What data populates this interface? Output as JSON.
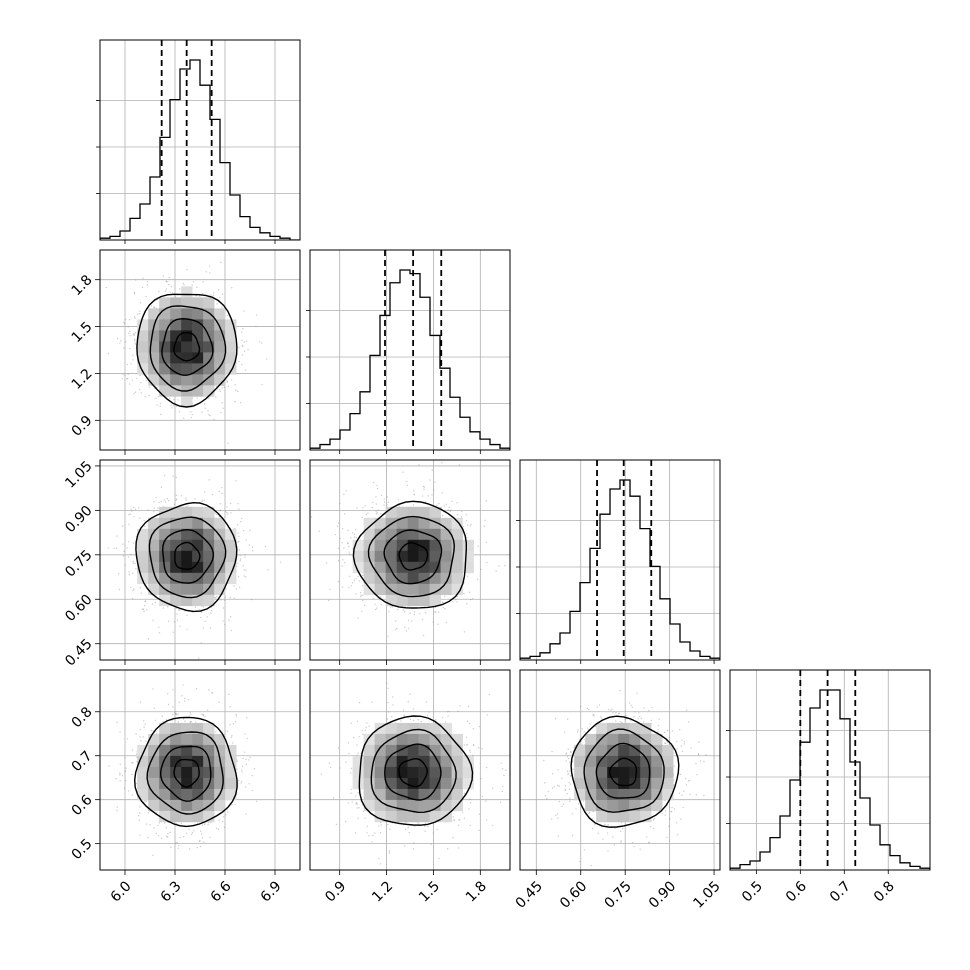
{
  "chart_data": {
    "type": "corner",
    "title": "",
    "parameters": 4,
    "grid": true,
    "quantile_lines": "dashed",
    "colors": {
      "hist": "#000000",
      "grid": "#b0b0b0",
      "samples": "#8c8c8c",
      "contour": "#000000"
    },
    "axes": [
      {
        "range": [
          5.85,
          7.05
        ],
        "ticks": [
          6.0,
          6.3,
          6.6,
          6.9
        ],
        "tick_labels": [
          "6.0",
          "6.3",
          "6.6",
          "6.9"
        ]
      },
      {
        "range": [
          0.71,
          1.99
        ],
        "ticks": [
          0.9,
          1.2,
          1.5,
          1.8
        ],
        "tick_labels": [
          "0.9",
          "1.2",
          "1.5",
          "1.8"
        ]
      },
      {
        "range": [
          0.395,
          1.07
        ],
        "ticks": [
          0.45,
          0.6,
          0.75,
          0.9,
          1.05
        ],
        "tick_labels": [
          "0.45",
          "0.60",
          "0.75",
          "0.90",
          "1.05"
        ]
      },
      {
        "range": [
          0.44,
          0.895
        ],
        "ticks": [
          0.5,
          0.6,
          0.7,
          0.8
        ],
        "tick_labels": [
          "0.5",
          "0.6",
          "0.7",
          "0.8"
        ]
      }
    ],
    "marginals": [
      {
        "param": 0,
        "median": 6.37,
        "quantiles": [
          6.22,
          6.37,
          6.52
        ],
        "bin_edges": [
          5.85,
          5.91,
          5.97,
          6.03,
          6.09,
          6.15,
          6.21,
          6.27,
          6.33,
          6.39,
          6.45,
          6.51,
          6.57,
          6.63,
          6.69,
          6.75,
          6.81,
          6.87,
          6.93,
          6.99,
          7.05
        ],
        "counts": [
          0.01,
          0.02,
          0.05,
          0.12,
          0.2,
          0.35,
          0.57,
          0.78,
          0.95,
          1.0,
          0.86,
          0.67,
          0.43,
          0.25,
          0.13,
          0.07,
          0.04,
          0.02,
          0.01,
          0.0
        ]
      },
      {
        "param": 1,
        "median": 1.37,
        "quantiles": [
          1.19,
          1.37,
          1.55
        ],
        "bin_edges": [
          0.71,
          0.774,
          0.838,
          0.902,
          0.966,
          1.03,
          1.094,
          1.158,
          1.222,
          1.286,
          1.35,
          1.414,
          1.478,
          1.542,
          1.606,
          1.67,
          1.734,
          1.798,
          1.862,
          1.926,
          1.99
        ],
        "counts": [
          0.01,
          0.03,
          0.06,
          0.11,
          0.2,
          0.32,
          0.52,
          0.74,
          0.92,
          0.99,
          0.97,
          0.84,
          0.63,
          0.45,
          0.29,
          0.18,
          0.1,
          0.06,
          0.03,
          0.01
        ]
      },
      {
        "param": 2,
        "median": 0.745,
        "quantiles": [
          0.655,
          0.745,
          0.838
        ],
        "bin_edges": [
          0.395,
          0.4288,
          0.4625,
          0.4963,
          0.53,
          0.5638,
          0.5975,
          0.6313,
          0.665,
          0.6988,
          0.7325,
          0.7663,
          0.8,
          0.8338,
          0.8675,
          0.9013,
          0.935,
          0.9688,
          1.0025,
          1.0363,
          1.07
        ],
        "counts": [
          0.01,
          0.02,
          0.04,
          0.09,
          0.15,
          0.27,
          0.43,
          0.62,
          0.81,
          0.95,
          1.0,
          0.91,
          0.73,
          0.52,
          0.34,
          0.2,
          0.1,
          0.05,
          0.02,
          0.01
        ]
      },
      {
        "param": 3,
        "median": 0.662,
        "quantiles": [
          0.6,
          0.662,
          0.725
        ],
        "bin_edges": [
          0.44,
          0.4628,
          0.4855,
          0.5083,
          0.531,
          0.5538,
          0.5765,
          0.5993,
          0.622,
          0.6448,
          0.6675,
          0.6903,
          0.713,
          0.7358,
          0.7585,
          0.7813,
          0.804,
          0.8268,
          0.8495,
          0.8723,
          0.895
        ],
        "counts": [
          0.01,
          0.03,
          0.05,
          0.1,
          0.18,
          0.3,
          0.5,
          0.71,
          0.9,
          1.0,
          1.0,
          0.84,
          0.6,
          0.4,
          0.25,
          0.14,
          0.08,
          0.04,
          0.02,
          0.01
        ]
      }
    ],
    "joint": [
      {
        "x_param": 0,
        "y_param": 1,
        "center": [
          6.37,
          1.37
        ],
        "sd": [
          0.15,
          0.18
        ]
      },
      {
        "x_param": 0,
        "y_param": 2,
        "center": [
          6.37,
          0.745
        ],
        "sd": [
          0.15,
          0.09
        ]
      },
      {
        "x_param": 1,
        "y_param": 2,
        "center": [
          1.37,
          0.745
        ],
        "sd": [
          0.18,
          0.09
        ]
      },
      {
        "x_param": 0,
        "y_param": 3,
        "center": [
          6.37,
          0.662
        ],
        "sd": [
          0.15,
          0.062
        ]
      },
      {
        "x_param": 1,
        "y_param": 3,
        "center": [
          1.37,
          0.662
        ],
        "sd": [
          0.18,
          0.062
        ]
      },
      {
        "x_param": 2,
        "y_param": 3,
        "center": [
          0.745,
          0.662
        ],
        "sd": [
          0.09,
          0.062
        ]
      }
    ],
    "contour_levels_sigma": [
      0.5,
      1.0,
      1.5,
      2.0
    ]
  }
}
